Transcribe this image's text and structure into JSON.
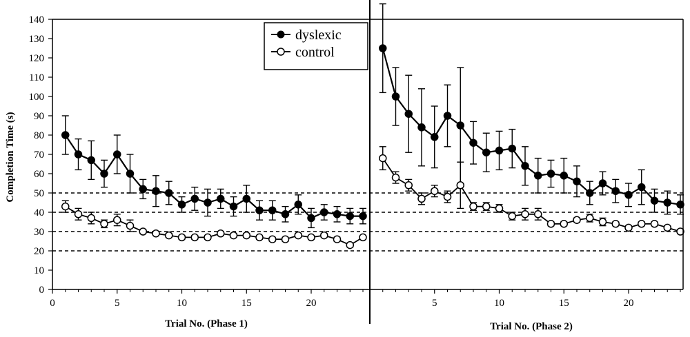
{
  "chart_data": {
    "type": "line",
    "ylabel": "Completion Time (s)",
    "ylim": [
      0,
      140
    ],
    "yticks": [
      0,
      10,
      20,
      30,
      40,
      50,
      60,
      70,
      80,
      90,
      100,
      110,
      120,
      130,
      140
    ],
    "reference_lines": [
      20,
      30,
      40,
      50
    ],
    "legend": {
      "placement": "top-center",
      "entries": [
        "dyslexic",
        "control"
      ]
    },
    "panels": [
      {
        "xlabel": "Trial No. (Phase 1)",
        "xlim": [
          0,
          24.5
        ],
        "xticks": [
          0,
          5,
          10,
          15,
          20
        ],
        "x": [
          1,
          2,
          3,
          4,
          5,
          6,
          7,
          8,
          9,
          10,
          11,
          12,
          13,
          14,
          15,
          16,
          17,
          18,
          19,
          20,
          21,
          22,
          23,
          24
        ],
        "series": [
          {
            "name": "dyslexic",
            "marker": "filled-circle",
            "values": [
              80,
              70,
              67,
              60,
              70,
              60,
              52,
              51,
              50,
              44,
              47,
              45,
              47,
              43,
              47,
              41,
              41,
              39,
              44,
              37,
              40,
              39,
              38,
              38
            ],
            "err": [
              10,
              8,
              10,
              7,
              10,
              10,
              5,
              8,
              6,
              4,
              6,
              7,
              5,
              5,
              7,
              5,
              5,
              4,
              5,
              5,
              4,
              4,
              4,
              4
            ]
          },
          {
            "name": "control",
            "marker": "open-circle",
            "values": [
              43,
              39,
              37,
              34,
              36,
              33,
              30,
              29,
              28,
              27,
              27,
              27,
              29,
              28,
              28,
              27,
              26,
              26,
              28,
              27,
              28,
              26,
              23,
              27
            ],
            "err": [
              3,
              3,
              3,
              2,
              3,
              3,
              1,
              1,
              1,
              1,
              1,
              1,
              1,
              1,
              1,
              1,
              1,
              1,
              1,
              1,
              1,
              1,
              1,
              1
            ]
          }
        ]
      },
      {
        "xlabel": "Trial No. (Phase 2)",
        "xlim": [
          0,
          24.5
        ],
        "xticks": [
          5,
          10,
          15,
          20
        ],
        "x": [
          1,
          2,
          3,
          4,
          5,
          6,
          7,
          8,
          9,
          10,
          11,
          12,
          13,
          14,
          15,
          16,
          17,
          18,
          19,
          20,
          21,
          22,
          23,
          24
        ],
        "series": [
          {
            "name": "dyslexic",
            "marker": "filled-circle",
            "values": [
              125,
              100,
              91,
              84,
              79,
              90,
              85,
              76,
              71,
              72,
              73,
              64,
              59,
              60,
              59,
              56,
              50,
              55,
              51,
              49,
              53,
              46,
              45,
              44
            ],
            "err": [
              23,
              15,
              20,
              20,
              16,
              16,
              30,
              11,
              10,
              10,
              10,
              10,
              9,
              7,
              9,
              8,
              6,
              6,
              6,
              6,
              9,
              6,
              6,
              5
            ]
          },
          {
            "name": "control",
            "marker": "open-circle",
            "values": [
              68,
              58,
              54,
              47,
              51,
              48,
              54,
              43,
              43,
              42,
              38,
              39,
              39,
              34,
              34,
              36,
              37,
              35,
              34,
              32,
              34,
              34,
              32,
              30
            ],
            "err": [
              6,
              3,
              3,
              3,
              3,
              3,
              12,
              2,
              2,
              2,
              2,
              3,
              3,
              1,
              1,
              1,
              2,
              2,
              1,
              1,
              1,
              1,
              1,
              1
            ]
          }
        ]
      }
    ]
  }
}
